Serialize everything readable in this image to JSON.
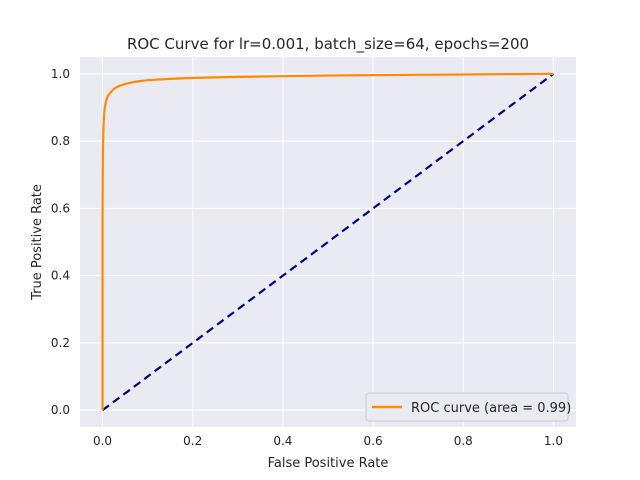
{
  "chart_data": {
    "type": "line",
    "title": "ROC Curve for lr=0.001, batch_size=64, epochs=200",
    "xlabel": "False Positive Rate",
    "ylabel": "True Positive Rate",
    "xlim": [
      -0.05,
      1.05
    ],
    "ylim": [
      -0.05,
      1.05
    ],
    "xticks": [
      "0.0",
      "0.2",
      "0.4",
      "0.6",
      "0.8",
      "1.0"
    ],
    "yticks": [
      "0.0",
      "0.2",
      "0.4",
      "0.6",
      "0.8",
      "1.0"
    ],
    "grid": true,
    "legend_position": "lower-right",
    "series": [
      {
        "name": "ROC curve (area = 0.99)",
        "color": "#ff8c00",
        "style": "solid",
        "x": [
          0.0,
          0.0,
          0.0005,
          0.001,
          0.002,
          0.003,
          0.005,
          0.008,
          0.012,
          0.018,
          0.025,
          0.035,
          0.05,
          0.07,
          0.1,
          0.15,
          0.2,
          0.3,
          0.4,
          0.5,
          0.6,
          0.7,
          0.8,
          0.9,
          1.0
        ],
        "y": [
          0.0,
          0.55,
          0.7,
          0.78,
          0.84,
          0.87,
          0.9,
          0.92,
          0.935,
          0.945,
          0.955,
          0.963,
          0.97,
          0.976,
          0.981,
          0.985,
          0.988,
          0.991,
          0.993,
          0.995,
          0.996,
          0.997,
          0.998,
          0.999,
          1.0
        ]
      },
      {
        "name": "",
        "color": "#000080",
        "style": "dashed",
        "x": [
          0.0,
          1.0
        ],
        "y": [
          0.0,
          1.0
        ]
      }
    ]
  }
}
